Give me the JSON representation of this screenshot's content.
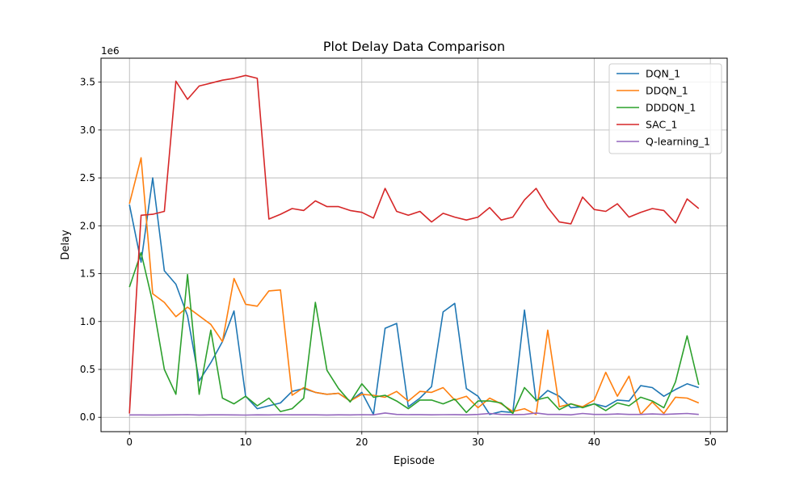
{
  "chart_data": {
    "type": "line",
    "title": "Plot Delay Data Comparison",
    "xlabel": "Episode",
    "ylabel": "Delay",
    "y_scale_label": "1e6",
    "xlim": [
      -2.45,
      51.45
    ],
    "ylim": [
      -0.15,
      3.75
    ],
    "x_ticks": [
      0,
      10,
      20,
      30,
      40,
      50
    ],
    "y_ticks": [
      0.0,
      0.5,
      1.0,
      1.5,
      2.0,
      2.5,
      3.0,
      3.5
    ],
    "y_tick_labels": [
      "0.0",
      "0.5",
      "1.0",
      "1.5",
      "2.0",
      "2.5",
      "3.0",
      "3.5"
    ],
    "grid": true,
    "legend_position": "top-right",
    "x": [
      0,
      1,
      2,
      3,
      4,
      5,
      6,
      7,
      8,
      9,
      10,
      11,
      12,
      13,
      14,
      15,
      16,
      17,
      18,
      19,
      20,
      21,
      22,
      23,
      24,
      25,
      26,
      27,
      28,
      29,
      30,
      31,
      32,
      33,
      34,
      35,
      36,
      37,
      38,
      39,
      40,
      41,
      42,
      43,
      44,
      45,
      46,
      47,
      48,
      49
    ],
    "series": [
      {
        "name": "DQN_1",
        "color": "#1f77b4",
        "values": [
          2.22,
          1.62,
          2.5,
          1.53,
          1.39,
          1.06,
          0.38,
          0.57,
          0.79,
          1.11,
          0.22,
          0.09,
          0.12,
          0.15,
          0.27,
          0.3,
          0.26,
          0.24,
          0.25,
          0.17,
          0.26,
          0.03,
          0.93,
          0.98,
          0.11,
          0.2,
          0.32,
          1.1,
          1.19,
          0.3,
          0.22,
          0.03,
          0.06,
          0.05,
          1.12,
          0.17,
          0.28,
          0.22,
          0.1,
          0.11,
          0.14,
          0.11,
          0.18,
          0.17,
          0.33,
          0.31,
          0.22,
          0.29,
          0.35,
          0.31
        ]
      },
      {
        "name": "DDQN_1",
        "color": "#ff7f0e",
        "values": [
          2.23,
          2.71,
          1.29,
          1.2,
          1.05,
          1.15,
          1.06,
          0.97,
          0.79,
          1.45,
          1.18,
          1.16,
          1.32,
          1.33,
          0.23,
          0.31,
          0.26,
          0.24,
          0.25,
          0.17,
          0.24,
          0.23,
          0.21,
          0.27,
          0.17,
          0.27,
          0.26,
          0.31,
          0.18,
          0.22,
          0.1,
          0.2,
          0.14,
          0.06,
          0.09,
          0.03,
          0.91,
          0.11,
          0.14,
          0.11,
          0.18,
          0.47,
          0.22,
          0.43,
          0.03,
          0.16,
          0.04,
          0.21,
          0.2,
          0.15
        ]
      },
      {
        "name": "DDDQN_1",
        "color": "#2ca02c",
        "values": [
          1.36,
          1.72,
          1.2,
          0.5,
          0.24,
          1.49,
          0.24,
          0.91,
          0.2,
          0.14,
          0.22,
          0.12,
          0.2,
          0.06,
          0.09,
          0.2,
          1.2,
          0.49,
          0.3,
          0.16,
          0.35,
          0.21,
          0.23,
          0.17,
          0.09,
          0.18,
          0.18,
          0.14,
          0.19,
          0.05,
          0.17,
          0.17,
          0.15,
          0.04,
          0.31,
          0.18,
          0.21,
          0.08,
          0.14,
          0.1,
          0.14,
          0.07,
          0.15,
          0.12,
          0.21,
          0.17,
          0.1,
          0.37,
          0.85,
          0.34
        ]
      },
      {
        "name": "SAC_1",
        "color": "#d62728",
        "values": [
          0.04,
          2.11,
          2.12,
          2.15,
          3.51,
          3.32,
          3.46,
          3.49,
          3.52,
          3.54,
          3.57,
          3.54,
          2.07,
          2.12,
          2.18,
          2.16,
          2.26,
          2.2,
          2.2,
          2.16,
          2.14,
          2.08,
          2.39,
          2.15,
          2.11,
          2.15,
          2.04,
          2.13,
          2.09,
          2.06,
          2.09,
          2.19,
          2.06,
          2.09,
          2.27,
          2.39,
          2.19,
          2.04,
          2.02,
          2.3,
          2.17,
          2.15,
          2.23,
          2.09,
          2.14,
          2.18,
          2.16,
          2.03,
          2.28,
          2.18
        ]
      },
      {
        "name": "Q-learning_1",
        "color": "#9467bd",
        "values": [
          0.025,
          0.025,
          0.024,
          0.025,
          0.026,
          0.027,
          0.024,
          0.026,
          0.026,
          0.025,
          0.023,
          0.026,
          0.025,
          0.027,
          0.026,
          0.026,
          0.026,
          0.024,
          0.026,
          0.025,
          0.027,
          0.026,
          0.045,
          0.03,
          0.027,
          0.028,
          0.026,
          0.027,
          0.028,
          0.026,
          0.03,
          0.04,
          0.03,
          0.028,
          0.03,
          0.045,
          0.03,
          0.03,
          0.026,
          0.04,
          0.03,
          0.03,
          0.035,
          0.03,
          0.03,
          0.035,
          0.03,
          0.035,
          0.04,
          0.03
        ]
      }
    ]
  }
}
